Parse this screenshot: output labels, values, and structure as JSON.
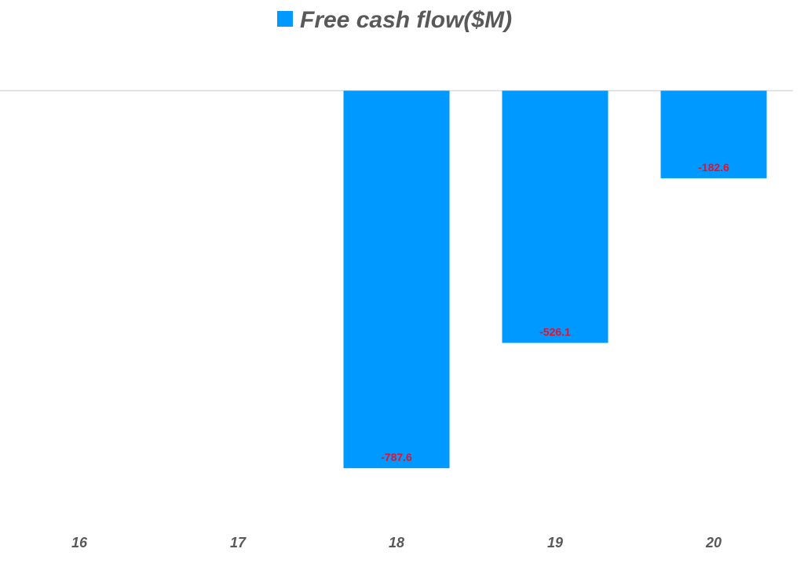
{
  "chart_data": {
    "type": "bar",
    "categories": [
      "16",
      "17",
      "18",
      "19",
      "20"
    ],
    "series": [
      {
        "name": "Free cash flow($M)",
        "values": [
          null,
          null,
          -787.6,
          -526.1,
          -182.6
        ],
        "data_labels": [
          "",
          "",
          "-787.6",
          "-526.1",
          "-182.6"
        ]
      }
    ],
    "title": "",
    "xlabel": "",
    "ylabel": "",
    "ylim": [
      -1000,
      0
    ],
    "grid": false,
    "legend_position": "top",
    "colors": {
      "bar": "#0099FF",
      "data_label": "#E8102B",
      "zero_line": "#D9D9D9",
      "text": "#595959"
    }
  }
}
